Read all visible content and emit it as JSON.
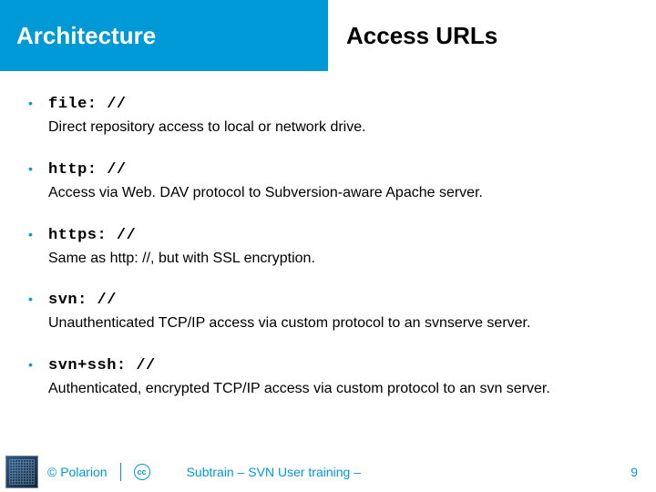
{
  "header": {
    "left": "Architecture",
    "right": "Access URLs"
  },
  "items": [
    {
      "code": "file: //",
      "desc": "Direct repository access to local or network drive."
    },
    {
      "code": "http: //",
      "desc": "Access via Web. DAV protocol to Subversion-aware Apache server."
    },
    {
      "code": "https: //",
      "desc": "Same as http: //, but with SSL encryption."
    },
    {
      "code": "svn: //",
      "desc": "Unauthenticated TCP/IP access via custom protocol to an svnserve server."
    },
    {
      "code": "svn+ssh: //",
      "desc": "Authenticated, encrypted TCP/IP access via custom protocol to an svn server."
    }
  ],
  "footer": {
    "copyright": "© Polarion",
    "title": "Subtrain – SVN User training –",
    "page": "9"
  },
  "colors": {
    "accent": "#0099d8",
    "text": "#000000",
    "bg": "#ffffff"
  }
}
